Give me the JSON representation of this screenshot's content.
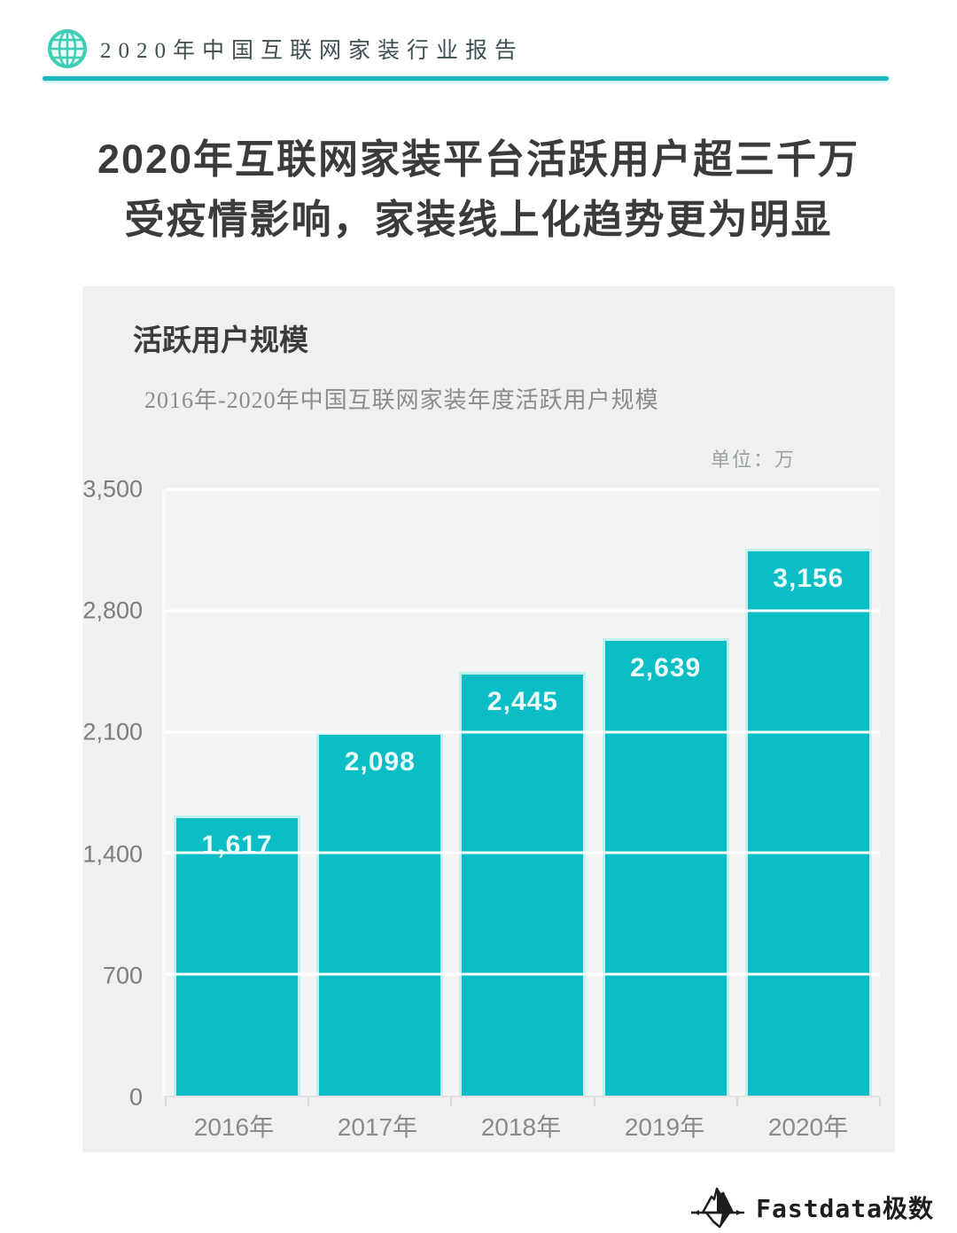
{
  "header": {
    "report_title": "2020年中国互联网家装行业报告"
  },
  "title": {
    "line1": "2020年互联网家装平台活跃用户超三千万",
    "line2": "受疫情影响，家装线上化趋势更为明显"
  },
  "panel": {
    "section_title": "活跃用户规模",
    "chart_subtitle": "2016年-2020年中国互联网家装年度活跃用户规模",
    "unit_label": "单位：万"
  },
  "chart_data": {
    "type": "bar",
    "title": "2016年-2020年中国互联网家装年度活跃用户规模",
    "unit": "万",
    "categories": [
      "2016年",
      "2017年",
      "2018年",
      "2019年",
      "2020年"
    ],
    "values": [
      1617,
      2098,
      2445,
      2639,
      3156
    ],
    "value_labels": [
      "1,617",
      "2,098",
      "2,445",
      "2,639",
      "3,156"
    ],
    "ylim": [
      0,
      3500
    ],
    "yticks": [
      0,
      700,
      1400,
      2100,
      2800,
      3500
    ],
    "ytick_labels": [
      "0",
      "700",
      "1,400",
      "2,100",
      "2,800",
      "3,500"
    ],
    "xlabel": "",
    "ylabel": "",
    "grid": true,
    "legend": false,
    "bar_color": "#0bbec5",
    "bar_label_color": "#eafcfb"
  },
  "colors": {
    "accent_teal": "#1ab9be",
    "panel_bg": "#f0f0f0",
    "plot_bg": "#f4f4f4",
    "axis_text": "#7d7d7d"
  },
  "footer": {
    "brand": "Fastdata极数"
  }
}
